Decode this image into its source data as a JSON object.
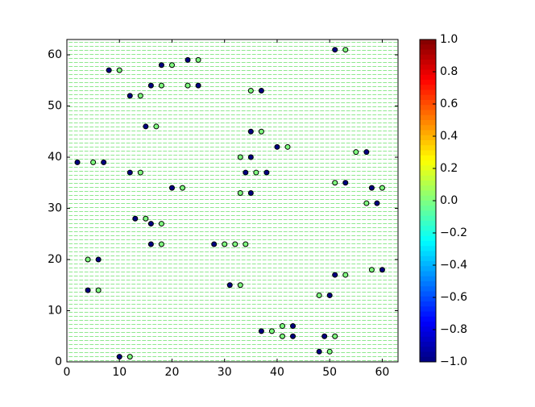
{
  "chart_data": {
    "type": "scatter",
    "x": [
      8,
      16,
      18,
      23,
      25,
      12,
      15,
      2,
      7,
      12,
      20,
      35,
      37,
      35,
      34,
      38,
      35,
      40,
      13,
      16,
      16,
      6,
      4,
      28,
      31,
      37,
      43,
      43,
      48,
      49,
      50,
      51,
      10,
      51,
      53,
      57,
      58,
      59,
      60,
      10,
      14,
      18,
      20,
      23,
      25,
      17,
      5,
      14,
      22,
      35,
      37,
      33,
      36,
      33,
      42,
      15,
      18,
      18,
      4,
      6,
      30,
      32,
      34,
      33,
      39,
      41,
      41,
      48,
      50,
      51,
      53,
      12,
      53,
      51,
      55,
      60,
      57,
      58
    ],
    "y": [
      57,
      54,
      58,
      59,
      54,
      52,
      46,
      39,
      39,
      37,
      34,
      45,
      53,
      40,
      37,
      37,
      33,
      42,
      28,
      27,
      23,
      20,
      14,
      23,
      15,
      6,
      7,
      5,
      2,
      5,
      13,
      17,
      1,
      61,
      35,
      41,
      34,
      31,
      18,
      57,
      52,
      54,
      58,
      54,
      59,
      46,
      39,
      37,
      34,
      53,
      45,
      40,
      37,
      33,
      42,
      28,
      27,
      23,
      20,
      14,
      23,
      23,
      23,
      15,
      6,
      7,
      5,
      13,
      2,
      5,
      17,
      1,
      61,
      35,
      41,
      34,
      31,
      18
    ],
    "c": [
      -1,
      -1,
      -1,
      -1,
      -1,
      -1,
      -1,
      -1,
      -1,
      -1,
      -1,
      -1,
      -1,
      -1,
      -1,
      -1,
      -1,
      -1,
      -1,
      -1,
      -1,
      -1,
      -1,
      -1,
      -1,
      -1,
      -1,
      -1,
      -1,
      -1,
      -1,
      -1,
      -1,
      -1,
      -1,
      -1,
      -1,
      -1,
      -1,
      0,
      0,
      0,
      0,
      0,
      0,
      0,
      0,
      0,
      0,
      0,
      0,
      0,
      0,
      0,
      0,
      0,
      0,
      0,
      0,
      0,
      0,
      0,
      0,
      0,
      0,
      0,
      0,
      0,
      0,
      0,
      0,
      0,
      0,
      0,
      0,
      0,
      0,
      0
    ],
    "colormap": "jet",
    "xlim": [
      0,
      63
    ],
    "ylim": [
      0,
      63
    ],
    "xticks": [
      0,
      10,
      20,
      30,
      40,
      50,
      60
    ],
    "yticks": [
      0,
      10,
      20,
      30,
      40,
      50,
      60
    ],
    "clim": [
      -1,
      1
    ],
    "cticks": [
      {
        "value": -1,
        "label": "−1.0"
      },
      {
        "value": -0.8,
        "label": "−0.8"
      },
      {
        "value": -0.6,
        "label": "−0.6"
      },
      {
        "value": -0.4,
        "label": "−0.4"
      },
      {
        "value": -0.2,
        "label": "−0.2"
      },
      {
        "value": 0,
        "label": "0.0"
      },
      {
        "value": 0.2,
        "label": "0.2"
      },
      {
        "value": 0.4,
        "label": "0.4"
      },
      {
        "value": 0.6,
        "label": "0.6"
      },
      {
        "value": 0.8,
        "label": "0.8"
      },
      {
        "value": 1,
        "label": "1.0"
      }
    ]
  }
}
